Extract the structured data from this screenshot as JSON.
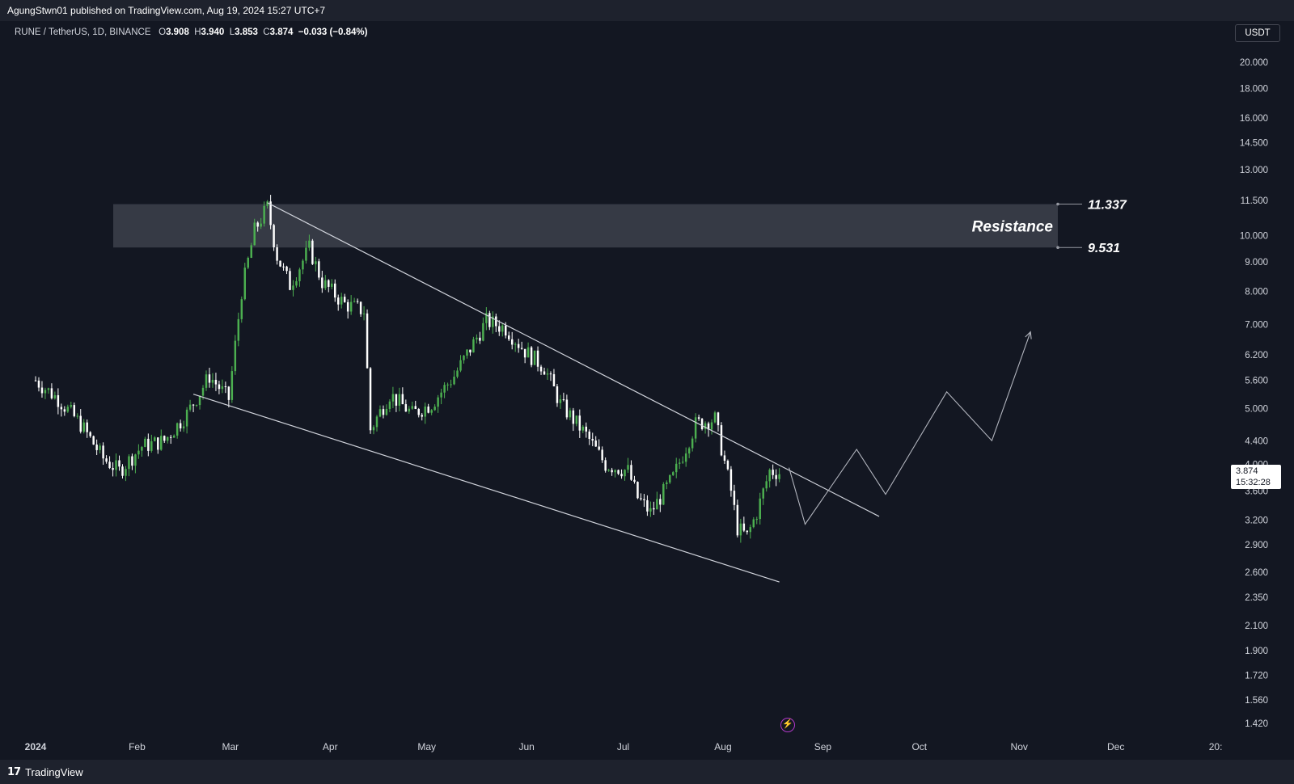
{
  "header": {
    "publisher_line": "AgungStwn01 published on TradingView.com, Aug 19, 2024 15:27 UTC+7"
  },
  "footer": {
    "brand": "TradingView",
    "logo_icon": "tradingview-logo-icon"
  },
  "legend": {
    "symbol": "RUNE / TetherUS, 1D, BINANCE",
    "o_label": "O",
    "o_value": "3.908",
    "h_label": "H",
    "h_value": "3.940",
    "l_label": "L",
    "l_value": "3.853",
    "c_label": "C",
    "c_value": "3.874",
    "change": "−0.033 (−0.84%)"
  },
  "price_scale": {
    "currency": "USDT",
    "current_price": "3.874",
    "countdown": "15:32:28"
  },
  "colors": {
    "background": "#131722",
    "up": "#4caf50",
    "down": "#ffffff",
    "zone": "#363a45",
    "line": "#d1d4dc"
  },
  "chart_data": {
    "type": "candlestick",
    "scale": "log",
    "ylim": [
      1.42,
      20.0
    ],
    "y_ticks": [
      "20.000",
      "18.000",
      "16.000",
      "14.500",
      "13.000",
      "11.500",
      "10.000",
      "9.000",
      "8.000",
      "7.000",
      "6.200",
      "5.600",
      "5.000",
      "4.400",
      "4.000",
      "3.600",
      "3.200",
      "2.900",
      "2.600",
      "2.350",
      "2.100",
      "1.900",
      "1.720",
      "1.560",
      "1.420"
    ],
    "x_ticks": [
      "2024",
      "Feb",
      "Mar",
      "Apr",
      "May",
      "Jun",
      "Jul",
      "Aug",
      "Sep",
      "Oct",
      "Nov",
      "Dec",
      "20:"
    ],
    "xlim": [
      "2024-01-01",
      "2025-01-05"
    ],
    "close_series": [
      [
        "2024-01-01",
        5.6
      ],
      [
        "2024-01-08",
        5.2
      ],
      [
        "2024-01-15",
        4.7
      ],
      [
        "2024-01-22",
        4.1
      ],
      [
        "2024-01-27",
        3.9
      ],
      [
        "2024-02-03",
        4.3
      ],
      [
        "2024-02-10",
        4.4
      ],
      [
        "2024-02-17",
        4.9
      ],
      [
        "2024-02-24",
        5.7
      ],
      [
        "2024-03-01",
        5.2
      ],
      [
        "2024-03-05",
        8.0
      ],
      [
        "2024-03-09",
        10.2
      ],
      [
        "2024-03-13",
        11.2
      ],
      [
        "2024-03-16",
        9.2
      ],
      [
        "2024-03-20",
        8.2
      ],
      [
        "2024-03-26",
        9.5
      ],
      [
        "2024-03-30",
        8.3
      ],
      [
        "2024-04-06",
        7.6
      ],
      [
        "2024-04-12",
        7.4
      ],
      [
        "2024-04-14",
        4.6
      ],
      [
        "2024-04-20",
        5.3
      ],
      [
        "2024-04-27",
        4.9
      ],
      [
        "2024-05-03",
        5.1
      ],
      [
        "2024-05-10",
        5.7
      ],
      [
        "2024-05-16",
        6.5
      ],
      [
        "2024-05-20",
        7.1
      ],
      [
        "2024-05-26",
        6.9
      ],
      [
        "2024-06-01",
        6.3
      ],
      [
        "2024-06-07",
        5.9
      ],
      [
        "2024-06-12",
        5.1
      ],
      [
        "2024-06-20",
        4.5
      ],
      [
        "2024-06-26",
        4.0
      ],
      [
        "2024-07-03",
        3.9
      ],
      [
        "2024-07-06",
        3.5
      ],
      [
        "2024-07-10",
        3.3
      ],
      [
        "2024-07-17",
        3.8
      ],
      [
        "2024-07-24",
        4.7
      ],
      [
        "2024-07-30",
        4.8
      ],
      [
        "2024-08-04",
        3.6
      ],
      [
        "2024-08-06",
        3.1
      ],
      [
        "2024-08-09",
        3.0
      ],
      [
        "2024-08-12",
        3.3
      ],
      [
        "2024-08-16",
        3.9
      ],
      [
        "2024-08-19",
        3.874
      ]
    ],
    "annotations": {
      "resistance_zone": {
        "label": "Resistance",
        "top": 11.337,
        "bottom": 9.531,
        "top_label": "11.337",
        "bottom_label": "9.531"
      },
      "upper_trendline": [
        [
          "2024-03-13",
          11.4
        ],
        [
          "2024-09-19",
          3.25
        ]
      ],
      "lower_trendline": [
        [
          "2024-02-19",
          5.3
        ],
        [
          "2024-08-19",
          2.5
        ]
      ],
      "projection_path": [
        [
          "2024-08-22",
          3.95
        ],
        [
          "2024-08-27",
          3.15
        ],
        [
          "2024-09-12",
          4.25
        ],
        [
          "2024-09-21",
          3.55
        ],
        [
          "2024-10-10",
          5.35
        ],
        [
          "2024-10-24",
          4.4
        ],
        [
          "2024-11-05",
          6.8
        ]
      ]
    }
  }
}
